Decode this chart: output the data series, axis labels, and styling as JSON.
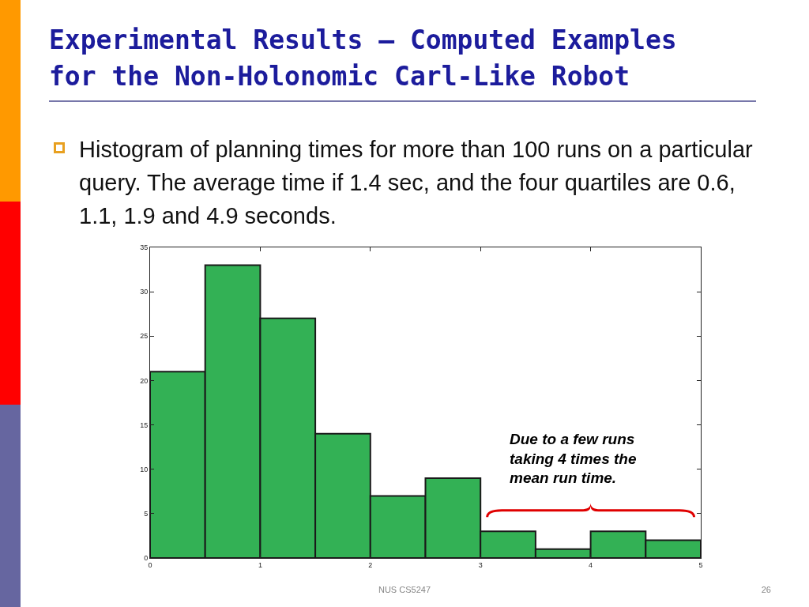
{
  "chart_data": {
    "type": "histogram",
    "title": "Experimental Results – Computed Examples for the Non-Holonomic Carl-Like Robot",
    "subtitle": "Histogram of planning times for more than 100 runs on a particular query. The average time if 1.4 sec, and the four quartiles are 0.6, 1.1, 1.9 and 4.9 seconds.",
    "bins": [
      0,
      0.5,
      1,
      1.5,
      2,
      2.5,
      3,
      3.5,
      4,
      4.5,
      5
    ],
    "values": [
      21,
      33,
      27,
      14,
      7,
      9,
      3,
      1,
      3,
      2
    ],
    "color": "#33b155",
    "xlim": [
      0,
      5
    ],
    "xticks": [
      0,
      1,
      2,
      3,
      4,
      5
    ],
    "ylim": [
      0,
      35
    ],
    "yticks": [
      0,
      5,
      10,
      15,
      20,
      25,
      30,
      35
    ],
    "grid": false,
    "legend": false,
    "annotations": [
      "Due to a few runs\ntaking 4 times the\nmean run time.",
      "NUS CS5247",
      "26"
    ]
  }
}
